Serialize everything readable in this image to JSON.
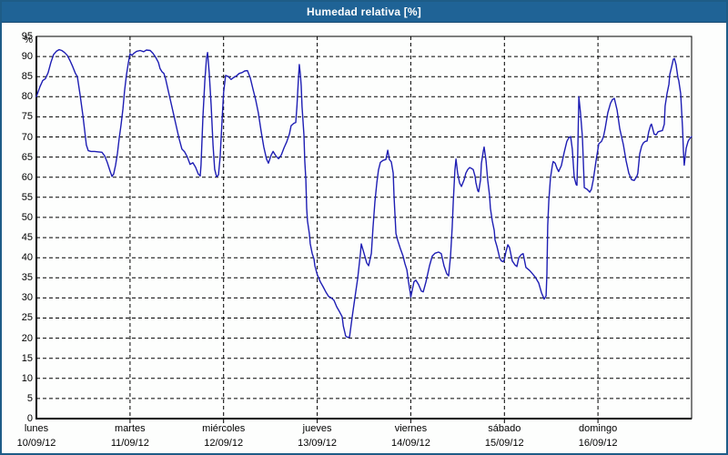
{
  "title": "Humedad relativa [%]",
  "colors": {
    "header_bg": "#1f6396",
    "outer_border": "#1e5c87",
    "plot_background": "#fdfefd",
    "line": "#1e1eb4",
    "grid": "#000000",
    "text": "#000000"
  },
  "chart_data": {
    "type": "line",
    "title": "Humedad relativa [%]",
    "ylabel": "%",
    "ylim": [
      0,
      95
    ],
    "ytick_step": 5,
    "xlim_hours": [
      0,
      168
    ],
    "grid": "dashed",
    "legend": "none",
    "days": [
      {
        "name": "lunes",
        "date": "10/09/12"
      },
      {
        "name": "martes",
        "date": "11/09/12"
      },
      {
        "name": "miércoles",
        "date": "12/09/12"
      },
      {
        "name": "jueves",
        "date": "13/09/12"
      },
      {
        "name": "viernes",
        "date": "14/09/12"
      },
      {
        "name": "sábado",
        "date": "15/09/12"
      },
      {
        "name": "domingo",
        "date": "16/09/12"
      }
    ],
    "series": [
      {
        "name": "Humedad relativa",
        "x_unit": "hours since lunes 00:00",
        "y_unit": "%",
        "points": [
          [
            0,
            80
          ],
          [
            0.9,
            82.5
          ],
          [
            1.6,
            84
          ],
          [
            2.3,
            84.5
          ],
          [
            3,
            86
          ],
          [
            3.7,
            88.5
          ],
          [
            4.4,
            90.5
          ],
          [
            5.1,
            91.3
          ],
          [
            5.8,
            91.7
          ],
          [
            6.5,
            91.5
          ],
          [
            7.2,
            91
          ],
          [
            7.9,
            90.3
          ],
          [
            8.6,
            89
          ],
          [
            9.3,
            87.5
          ],
          [
            10,
            85.8
          ],
          [
            10.5,
            85
          ],
          [
            11.2,
            80.5
          ],
          [
            11.9,
            75.5
          ],
          [
            12.4,
            71.5
          ],
          [
            12.8,
            68
          ],
          [
            13.3,
            66.6
          ],
          [
            14,
            66.4
          ],
          [
            14.9,
            66.4
          ],
          [
            15.9,
            66.3
          ],
          [
            16.8,
            66.2
          ],
          [
            17.5,
            65.3
          ],
          [
            18.2,
            63.6
          ],
          [
            18.9,
            61.5
          ],
          [
            19.4,
            60.2
          ],
          [
            19.8,
            60.8
          ],
          [
            20.3,
            63
          ],
          [
            20.8,
            66
          ],
          [
            21.2,
            69.5
          ],
          [
            21.7,
            73
          ],
          [
            22.2,
            77
          ],
          [
            22.6,
            81.5
          ],
          [
            23.1,
            85.5
          ],
          [
            23.6,
            88.5
          ],
          [
            24,
            90.7
          ],
          [
            24.5,
            90.3
          ],
          [
            25,
            90.8
          ],
          [
            25.7,
            91.3
          ],
          [
            26.6,
            91.5
          ],
          [
            27.5,
            91.2
          ],
          [
            28.2,
            91.6
          ],
          [
            29.2,
            91.5
          ],
          [
            29.9,
            90.8
          ],
          [
            30.6,
            89.8
          ],
          [
            31.3,
            88.5
          ],
          [
            31.7,
            87
          ],
          [
            32.2,
            86.2
          ],
          [
            32.7,
            85.8
          ],
          [
            33.1,
            84.5
          ],
          [
            33.8,
            81.5
          ],
          [
            34.5,
            78.5
          ],
          [
            35.2,
            75.5
          ],
          [
            35.9,
            72.5
          ],
          [
            36.6,
            69.5
          ],
          [
            37.3,
            67
          ],
          [
            38,
            66.3
          ],
          [
            38.7,
            65
          ],
          [
            39.4,
            63.2
          ],
          [
            40.1,
            63.6
          ],
          [
            40.8,
            62.5
          ],
          [
            41.5,
            60.8
          ],
          [
            42,
            60.3
          ],
          [
            42.2,
            63
          ],
          [
            42.7,
            75
          ],
          [
            43.2,
            84
          ],
          [
            43.6,
            89.5
          ],
          [
            43.9,
            91
          ],
          [
            44.3,
            86
          ],
          [
            44.8,
            78
          ],
          [
            45.3,
            68
          ],
          [
            45.7,
            62
          ],
          [
            46.2,
            60.1
          ],
          [
            46.7,
            60.6
          ],
          [
            47.1,
            65
          ],
          [
            47.6,
            74
          ],
          [
            48,
            81
          ],
          [
            48.5,
            85.3
          ],
          [
            49.2,
            85
          ],
          [
            49.9,
            84.3
          ],
          [
            50.6,
            84.8
          ],
          [
            51.3,
            85.2
          ],
          [
            52,
            85.8
          ],
          [
            52.7,
            86
          ],
          [
            53.4,
            86.4
          ],
          [
            54.1,
            86.5
          ],
          [
            54.8,
            84.8
          ],
          [
            55.5,
            82
          ],
          [
            56.2,
            79.3
          ],
          [
            56.9,
            76
          ],
          [
            57.6,
            71.5
          ],
          [
            58.3,
            67.5
          ],
          [
            59,
            64.5
          ],
          [
            59.5,
            63.5
          ],
          [
            60.2,
            65.5
          ],
          [
            60.7,
            66.4
          ],
          [
            61.4,
            65.3
          ],
          [
            62.1,
            64.6
          ],
          [
            62.8,
            65.5
          ],
          [
            63.5,
            67.3
          ],
          [
            64.2,
            68.8
          ],
          [
            64.9,
            70.8
          ],
          [
            65.3,
            72.8
          ],
          [
            66,
            73.4
          ],
          [
            66.5,
            73.6
          ],
          [
            66.8,
            77.6
          ],
          [
            67.2,
            84.7
          ],
          [
            67.4,
            88
          ],
          [
            67.7,
            85.5
          ],
          [
            67.9,
            82.7
          ],
          [
            68.1,
            77.6
          ],
          [
            68.6,
            70.5
          ],
          [
            68.8,
            64.1
          ],
          [
            69.1,
            59.4
          ],
          [
            69.3,
            52.3
          ],
          [
            69.5,
            49.1
          ],
          [
            70,
            45.9
          ],
          [
            70.2,
            43.5
          ],
          [
            70.7,
            41.1
          ],
          [
            71.2,
            39.6
          ],
          [
            71.4,
            38
          ],
          [
            72,
            35.8
          ],
          [
            72.8,
            34
          ],
          [
            73.5,
            32.8
          ],
          [
            74.2,
            31.5
          ],
          [
            74.9,
            30.4
          ],
          [
            75.6,
            30
          ],
          [
            76.3,
            29.4
          ],
          [
            77,
            27.8
          ],
          [
            77.7,
            26.6
          ],
          [
            78.4,
            25.3
          ],
          [
            78.7,
            23
          ],
          [
            79.3,
            20.5
          ],
          [
            79.8,
            20.2
          ],
          [
            80.3,
            20.3
          ],
          [
            81,
            25.4
          ],
          [
            81.7,
            30.2
          ],
          [
            82.4,
            34.9
          ],
          [
            83.1,
            41.1
          ],
          [
            83.3,
            43.4
          ],
          [
            84,
            41.1
          ],
          [
            84.7,
            38.7
          ],
          [
            85.2,
            38
          ],
          [
            85.9,
            41.1
          ],
          [
            86.3,
            47.5
          ],
          [
            86.8,
            53.9
          ],
          [
            87.3,
            58.6
          ],
          [
            87.7,
            61.8
          ],
          [
            88.2,
            63.7
          ],
          [
            88.9,
            64.2
          ],
          [
            89.6,
            64.4
          ],
          [
            90.1,
            66.7
          ],
          [
            90.5,
            64.4
          ],
          [
            91,
            63.8
          ],
          [
            91.5,
            61
          ],
          [
            91.7,
            55.3
          ],
          [
            92.2,
            46
          ],
          [
            92.6,
            44.4
          ],
          [
            93.3,
            42.3
          ],
          [
            94,
            40.4
          ],
          [
            94.5,
            38.5
          ],
          [
            95,
            37
          ],
          [
            95.4,
            34
          ],
          [
            95.9,
            31
          ],
          [
            96,
            30.2
          ],
          [
            96.8,
            34
          ],
          [
            97.3,
            34.4
          ],
          [
            98,
            33.3
          ],
          [
            98.7,
            31.7
          ],
          [
            99.2,
            31.5
          ],
          [
            99.9,
            34
          ],
          [
            100.8,
            38
          ],
          [
            101.5,
            40.4
          ],
          [
            102.2,
            41.1
          ],
          [
            103.1,
            41.4
          ],
          [
            103.8,
            41
          ],
          [
            104.5,
            38
          ],
          [
            105.2,
            36
          ],
          [
            105.7,
            35.5
          ],
          [
            106.2,
            40.4
          ],
          [
            106.6,
            47.5
          ],
          [
            106.9,
            53.9
          ],
          [
            107.3,
            61.8
          ],
          [
            107.6,
            64.5
          ],
          [
            108,
            61
          ],
          [
            108.5,
            58.6
          ],
          [
            109,
            57.7
          ],
          [
            109.7,
            59.4
          ],
          [
            110.1,
            61
          ],
          [
            110.6,
            61.9
          ],
          [
            111.1,
            62.4
          ],
          [
            111.5,
            62.2
          ],
          [
            112,
            61.9
          ],
          [
            112.5,
            60.2
          ],
          [
            112.7,
            58.6
          ],
          [
            113.2,
            56.6
          ],
          [
            113.4,
            56.4
          ],
          [
            113.9,
            59.4
          ],
          [
            114.1,
            63.4
          ],
          [
            114.6,
            66.5
          ],
          [
            114.8,
            67.5
          ],
          [
            115.3,
            64.1
          ],
          [
            115.7,
            59.4
          ],
          [
            116.2,
            55.4
          ],
          [
            116.4,
            52.3
          ],
          [
            116.9,
            49.1
          ],
          [
            117.4,
            46.8
          ],
          [
            117.6,
            44.4
          ],
          [
            118.1,
            42.8
          ],
          [
            118.5,
            41.1
          ],
          [
            118.8,
            39.9
          ],
          [
            119.2,
            39.2
          ],
          [
            119.7,
            39
          ],
          [
            120,
            39.6
          ],
          [
            120.4,
            41.5
          ],
          [
            120.9,
            43.2
          ],
          [
            121.3,
            42.5
          ],
          [
            122,
            39.2
          ],
          [
            122.7,
            38.2
          ],
          [
            123.2,
            37.8
          ],
          [
            123.7,
            40
          ],
          [
            124.4,
            40.8
          ],
          [
            124.8,
            41
          ],
          [
            125.5,
            37.6
          ],
          [
            126.5,
            36.8
          ],
          [
            127.2,
            36
          ],
          [
            127.9,
            35.2
          ],
          [
            128.8,
            33.7
          ],
          [
            129.5,
            31.3
          ],
          [
            130.2,
            29.7
          ],
          [
            130.7,
            30.5
          ],
          [
            130.9,
            36
          ],
          [
            131.1,
            48
          ],
          [
            131.4,
            54.2
          ],
          [
            131.8,
            59.8
          ],
          [
            132.3,
            63
          ],
          [
            132.5,
            63.9
          ],
          [
            133,
            63.5
          ],
          [
            133.5,
            62.2
          ],
          [
            133.9,
            61.4
          ],
          [
            134.6,
            62.9
          ],
          [
            135.3,
            66.1
          ],
          [
            136,
            68.9
          ],
          [
            136.5,
            69.8
          ],
          [
            137,
            70.1
          ],
          [
            137.4,
            67
          ],
          [
            137.9,
            60
          ],
          [
            138.4,
            58.2
          ],
          [
            138.6,
            58
          ],
          [
            138.8,
            66
          ],
          [
            139.1,
            80
          ],
          [
            139.5,
            76
          ],
          [
            140,
            70
          ],
          [
            140.5,
            57.4
          ],
          [
            141.2,
            57
          ],
          [
            141.9,
            56.3
          ],
          [
            142.3,
            57
          ],
          [
            142.8,
            59.4
          ],
          [
            143.5,
            64.1
          ],
          [
            144,
            67
          ],
          [
            144.2,
            68.3
          ],
          [
            144.9,
            68.9
          ],
          [
            145.4,
            70
          ],
          [
            145.8,
            72
          ],
          [
            146.5,
            76
          ],
          [
            147.2,
            78.4
          ],
          [
            147.7,
            79.3
          ],
          [
            148.2,
            79.6
          ],
          [
            148.9,
            76.7
          ],
          [
            149.6,
            72
          ],
          [
            150.5,
            68.1
          ],
          [
            151.2,
            64.1
          ],
          [
            151.9,
            61
          ],
          [
            152.6,
            59.4
          ],
          [
            153.3,
            59.2
          ],
          [
            154,
            60.3
          ],
          [
            154.2,
            61
          ],
          [
            154.7,
            65.8
          ],
          [
            155.2,
            67.7
          ],
          [
            155.6,
            68.5
          ],
          [
            156.1,
            68.9
          ],
          [
            156.6,
            69
          ],
          [
            157,
            71.3
          ],
          [
            157.5,
            72.9
          ],
          [
            157.7,
            73.2
          ],
          [
            158.4,
            70.7
          ],
          [
            158.9,
            70.5
          ],
          [
            159.4,
            71.3
          ],
          [
            160.1,
            71.5
          ],
          [
            160.5,
            71.6
          ],
          [
            161,
            73.2
          ],
          [
            161.2,
            77.7
          ],
          [
            161.7,
            80.8
          ],
          [
            162.2,
            83.1
          ],
          [
            162.4,
            85.5
          ],
          [
            162.9,
            87.5
          ],
          [
            163.3,
            89.3
          ],
          [
            163.6,
            89.5
          ],
          [
            164,
            88
          ],
          [
            164.5,
            84.7
          ],
          [
            164.7,
            84
          ],
          [
            165.2,
            80.8
          ],
          [
            165.7,
            72
          ],
          [
            165.9,
            66.5
          ],
          [
            166.1,
            63
          ],
          [
            166.6,
            67.2
          ],
          [
            167.1,
            68.9
          ],
          [
            167.5,
            69.6
          ],
          [
            168,
            70.1
          ]
        ]
      }
    ]
  }
}
